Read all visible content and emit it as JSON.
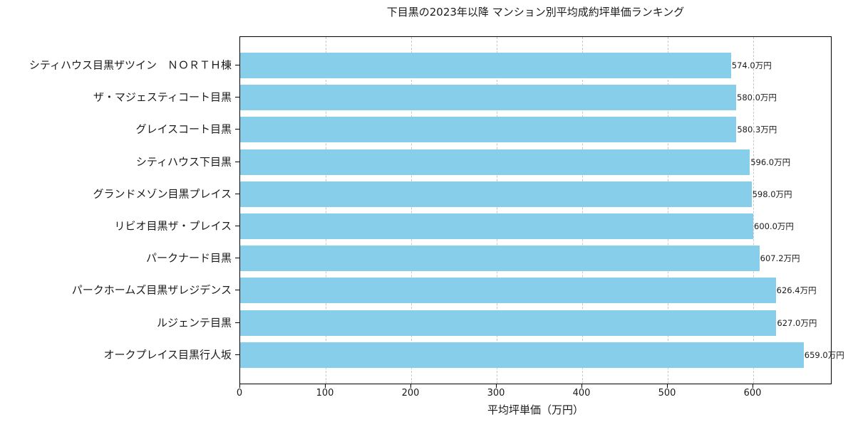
{
  "chart_data": {
    "type": "bar",
    "orientation": "horizontal",
    "title": "下目黒の2023年以降 マンション別平均成約坪単価ランキング",
    "xlabel": "平均坪単価（万円）",
    "ylabel": "",
    "xlim": [
      0,
      692.5
    ],
    "xticks": [
      "0",
      "100",
      "200",
      "300",
      "400",
      "500",
      "600"
    ],
    "grid": "x-axis dashed",
    "bar_color": "#87ceeb",
    "categories": [
      "シティハウス目黒ザツイン　ＮＯＲＴＨ棟",
      "ザ・マジェスティコート目黒",
      "グレイスコート目黒",
      "シティハウス下目黒",
      "グランドメゾン目黒プレイス",
      "リビオ目黒ザ・プレイス",
      "パークナード目黒",
      "パークホームズ目黒ザレジデンス",
      "ルジェンテ目黒",
      "オークプレイス目黒行人坂"
    ],
    "values": [
      574.0,
      580.0,
      580.3,
      596.0,
      598.0,
      600.0,
      607.2,
      626.4,
      627.0,
      659.0
    ],
    "value_labels": [
      "574.0万円",
      "580.0万円",
      "580.3万円",
      "596.0万円",
      "598.0万円",
      "600.0万円",
      "607.2万円",
      "626.4万円",
      "627.0万円",
      "659.0万円"
    ]
  }
}
